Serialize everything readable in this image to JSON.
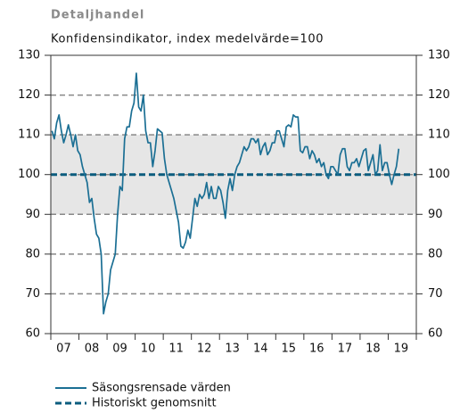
{
  "chart_data": {
    "type": "line",
    "title": "Detaljhandel",
    "subtitle": "Konfidensindikator, index medelvärde=100",
    "categories": [
      null,
      null,
      null,
      null,
      null,
      null,
      "07",
      null,
      null,
      null,
      null,
      null,
      null,
      null,
      null,
      null,
      null,
      null,
      "08",
      null,
      null,
      null,
      null,
      null,
      null,
      null,
      null,
      null,
      null,
      null,
      "09",
      null,
      null,
      null,
      null,
      null,
      null,
      null,
      null,
      null,
      null,
      null,
      "10",
      null,
      null,
      null,
      null,
      null,
      null,
      null,
      null,
      null,
      null,
      null,
      "11",
      null,
      null,
      null,
      null,
      null,
      null,
      null,
      null,
      null,
      null,
      null,
      "12",
      null,
      null,
      null,
      null,
      null,
      null,
      null,
      null,
      null,
      null,
      null,
      "13",
      null,
      null,
      null,
      null,
      null,
      null,
      null,
      null,
      null,
      null,
      null,
      "14",
      null,
      null,
      null,
      null,
      null,
      null,
      null,
      null,
      null,
      null,
      null,
      "15",
      null,
      null,
      null,
      null,
      null,
      null,
      null,
      null,
      null,
      null,
      null,
      "16",
      null,
      null,
      null,
      null,
      null,
      null,
      null,
      null,
      null,
      null,
      null,
      "17",
      null,
      null,
      null,
      null,
      null,
      null,
      null,
      null,
      null,
      null,
      null,
      "18",
      null,
      null,
      null,
      null,
      null,
      null,
      null,
      null,
      null,
      null,
      null,
      "19",
      null,
      null,
      null,
      null,
      null
    ],
    "series": [
      {
        "name": "Säsongsrensade värden",
        "color": "#1b6f94",
        "values": [
          111,
          109,
          113,
          115,
          111,
          108,
          110,
          112.5,
          110,
          107,
          110,
          106,
          105,
          102,
          100,
          98,
          93,
          94,
          89,
          85,
          84,
          80,
          65,
          68,
          70,
          76,
          78,
          80,
          90,
          97,
          96,
          109,
          112,
          112,
          116,
          118,
          125.5,
          117,
          116,
          120,
          111,
          108,
          108,
          102,
          106,
          111.5,
          111,
          110.5,
          104,
          100,
          98,
          96,
          94,
          91,
          88,
          82,
          81.5,
          83,
          86,
          84,
          89,
          94,
          92,
          95,
          94,
          95,
          98,
          94,
          97,
          94,
          94,
          97,
          96,
          93,
          89,
          96,
          99,
          96,
          100,
          102,
          103,
          105,
          107,
          106,
          107,
          109,
          109,
          108,
          109,
          105,
          107,
          108,
          105,
          106,
          108,
          108,
          111,
          111,
          109,
          107,
          112,
          112.5,
          112,
          115,
          114.5,
          114.5,
          106,
          105.5,
          107,
          107,
          104,
          106,
          105,
          103,
          104,
          102,
          103,
          100,
          99,
          102,
          102,
          101,
          100,
          105,
          106.5,
          106.5,
          102,
          101,
          103,
          103,
          104,
          102,
          104,
          106,
          106.5,
          101,
          103,
          105,
          100,
          101,
          107.5,
          101,
          103,
          103,
          100,
          97.5,
          100,
          102,
          106.5,
          null,
          null,
          null,
          null,
          null,
          null,
          null
        ]
      }
    ],
    "reference_line": {
      "name": "Historiskt genomsnitt",
      "value": 100,
      "color": "#0b5c7e"
    },
    "band": [
      90,
      110
    ],
    "ylim": [
      60,
      130
    ],
    "yticks": [
      60,
      70,
      80,
      90,
      100,
      110,
      120,
      130
    ],
    "grid": true
  }
}
